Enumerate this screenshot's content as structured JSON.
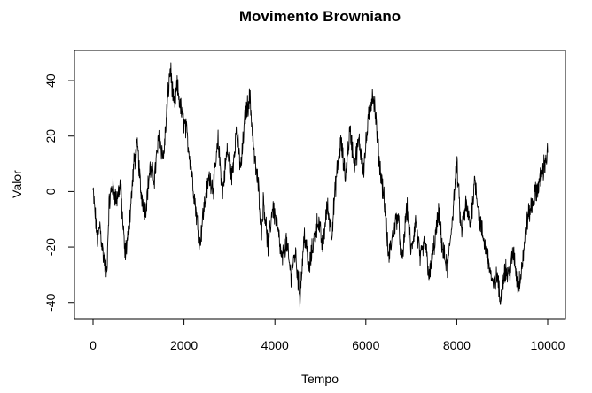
{
  "chart_data": {
    "type": "line",
    "title": "Movimento Browniano",
    "xlabel": "Tempo",
    "ylabel": "Valor",
    "xlim": [
      0,
      10000
    ],
    "ylim": [
      -42,
      48
    ],
    "xticks": [
      "0",
      "2000",
      "4000",
      "6000",
      "8000",
      "10000"
    ],
    "xtick_values": [
      0,
      2000,
      4000,
      6000,
      8000,
      10000
    ],
    "yticks": [
      "-40",
      "-20",
      "0",
      "20",
      "40"
    ],
    "ytick_values": [
      -40,
      -20,
      0,
      20,
      40
    ],
    "grid": false,
    "line_color": "#000000",
    "series": [
      {
        "x": [
          0,
          100,
          150,
          200,
          300,
          350,
          420,
          520,
          600,
          700,
          780,
          900,
          980,
          1050,
          1150,
          1250,
          1350,
          1450,
          1550,
          1650,
          1700,
          1780,
          1850,
          1950,
          2050,
          2150,
          2250,
          2350,
          2420,
          2550,
          2650,
          2750,
          2850,
          2950,
          3050,
          3150,
          3250,
          3350,
          3450,
          3550,
          3650,
          3700,
          3750,
          3850,
          3950,
          4050,
          4150,
          4250,
          4350,
          4450,
          4550,
          4650,
          4750,
          4850,
          4950,
          5050,
          5150,
          5250,
          5350,
          5450,
          5550,
          5650,
          5750,
          5850,
          5950,
          6050,
          6150,
          6200,
          6300,
          6400,
          6500,
          6600,
          6700,
          6800,
          6900,
          7000,
          7100,
          7200,
          7300,
          7400,
          7500,
          7600,
          7700,
          7800,
          7900,
          8000,
          8100,
          8200,
          8300,
          8400,
          8500,
          8600,
          8700,
          8800,
          8900,
          8950,
          9050,
          9150,
          9250,
          9350,
          9450,
          9550,
          9650,
          9750,
          9850,
          10000
        ],
        "y": [
          0,
          -18,
          -12,
          -20,
          -30,
          -5,
          2,
          -3,
          3,
          -23,
          -15,
          10,
          16,
          0,
          -7,
          8,
          5,
          20,
          12,
          35,
          45,
          30,
          38,
          28,
          22,
          10,
          -5,
          -19,
          -8,
          5,
          2,
          18,
          0,
          15,
          5,
          22,
          8,
          28,
          34,
          12,
          0,
          -15,
          -3,
          -20,
          -5,
          -12,
          -25,
          -18,
          -30,
          -22,
          -38,
          -15,
          -28,
          -18,
          -10,
          -20,
          -5,
          -15,
          5,
          18,
          5,
          22,
          10,
          18,
          8,
          25,
          36,
          30,
          10,
          -2,
          -24,
          -15,
          -8,
          -26,
          -5,
          -22,
          -10,
          -25,
          -18,
          -31,
          -20,
          -8,
          -22,
          -28,
          -10,
          10,
          -15,
          -5,
          -12,
          5,
          -10,
          -18,
          -25,
          -35,
          -30,
          -40,
          -28,
          -30,
          -22,
          -35,
          -25,
          -10,
          -5,
          0,
          5,
          14
        ]
      }
    ]
  }
}
